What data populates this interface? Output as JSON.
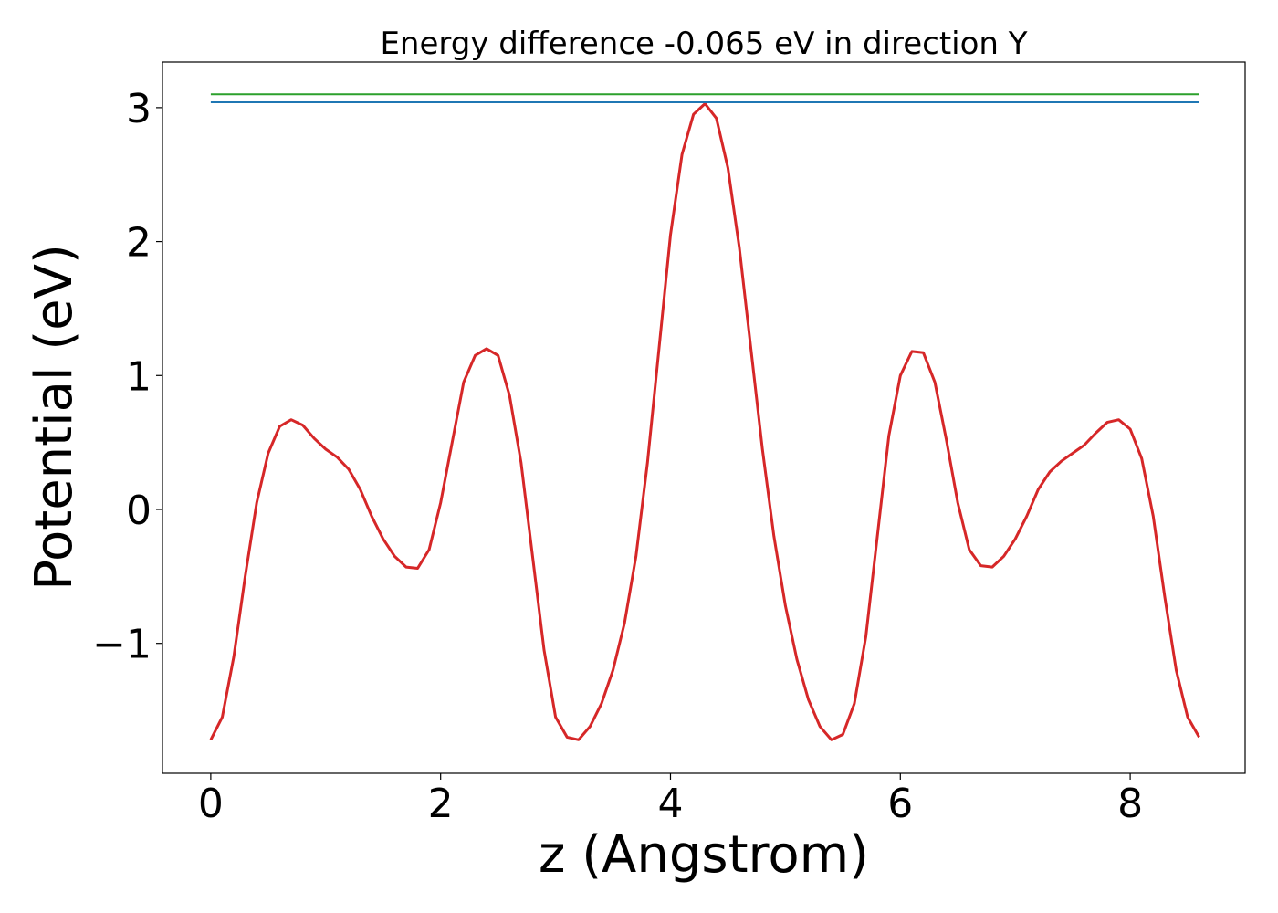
{
  "chart_data": {
    "type": "line",
    "title": "Energy difference -0.065 eV in direction Y",
    "xlabel": "z (Angstrom)",
    "ylabel": "Potential (eV)",
    "xlim": [
      -0.42,
      9.0
    ],
    "ylim": [
      -1.97,
      3.34
    ],
    "xticks": [
      0,
      2,
      4,
      6,
      8
    ],
    "xtick_labels": [
      "0",
      "2",
      "4",
      "6",
      "8"
    ],
    "yticks": [
      -1,
      0,
      1,
      2,
      3
    ],
    "ytick_labels": [
      "−1",
      "0",
      "1",
      "2",
      "3"
    ],
    "grid": false,
    "series": [
      {
        "color": "#d62728",
        "x": [
          0.0,
          0.1,
          0.2,
          0.3,
          0.4,
          0.5,
          0.6,
          0.7,
          0.8,
          0.9,
          1.0,
          1.1,
          1.2,
          1.3,
          1.4,
          1.5,
          1.6,
          1.7,
          1.8,
          1.9,
          2.0,
          2.1,
          2.2,
          2.3,
          2.4,
          2.5,
          2.6,
          2.7,
          2.8,
          2.9,
          3.0,
          3.1,
          3.2,
          3.3,
          3.4,
          3.5,
          3.6,
          3.7,
          3.8,
          3.9,
          4.0,
          4.1,
          4.2,
          4.3,
          4.4,
          4.5,
          4.6,
          4.7,
          4.8,
          4.9,
          5.0,
          5.1,
          5.2,
          5.3,
          5.4,
          5.5,
          5.6,
          5.7,
          5.8,
          5.9,
          6.0,
          6.1,
          6.2,
          6.3,
          6.4,
          6.5,
          6.6,
          6.7,
          6.8,
          6.9,
          7.0,
          7.1,
          7.2,
          7.3,
          7.4,
          7.5,
          7.6,
          7.7,
          7.8,
          7.9,
          8.0,
          8.1,
          8.2,
          8.3,
          8.4,
          8.5,
          8.6
        ],
        "y": [
          -1.72,
          -1.55,
          -1.1,
          -0.5,
          0.05,
          0.42,
          0.62,
          0.67,
          0.63,
          0.53,
          0.45,
          0.39,
          0.3,
          0.15,
          -0.05,
          -0.22,
          -0.35,
          -0.43,
          -0.44,
          -0.3,
          0.05,
          0.5,
          0.95,
          1.15,
          1.2,
          1.15,
          0.85,
          0.35,
          -0.35,
          -1.05,
          -1.55,
          -1.7,
          -1.72,
          -1.62,
          -1.45,
          -1.2,
          -0.85,
          -0.35,
          0.35,
          1.2,
          2.05,
          2.65,
          2.95,
          3.03,
          2.92,
          2.55,
          1.95,
          1.2,
          0.45,
          -0.2,
          -0.72,
          -1.12,
          -1.42,
          -1.62,
          -1.72,
          -1.68,
          -1.45,
          -0.95,
          -0.2,
          0.55,
          1.0,
          1.18,
          1.17,
          0.95,
          0.52,
          0.05,
          -0.3,
          -0.42,
          -0.43,
          -0.35,
          -0.22,
          -0.05,
          0.15,
          0.28,
          0.36,
          0.42,
          0.48,
          0.57,
          0.65,
          0.67,
          0.6,
          0.38,
          -0.05,
          -0.65,
          -1.2,
          -1.55,
          -1.7
        ]
      },
      {
        "color": "#1f77b4",
        "x": [
          0.0,
          8.6
        ],
        "y": [
          3.04,
          3.04
        ]
      },
      {
        "color": "#2ca02c",
        "x": [
          0.0,
          8.6
        ],
        "y": [
          3.1,
          3.1
        ]
      }
    ]
  }
}
